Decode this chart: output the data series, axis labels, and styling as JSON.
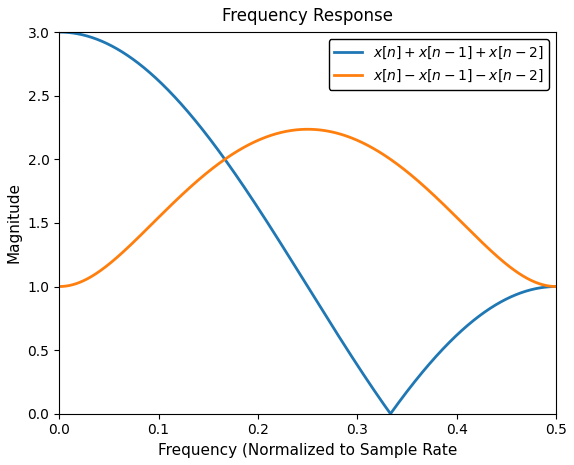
{
  "title": "Frequency Response",
  "xlabel": "Frequency (Normalized to Sample Rate",
  "ylabel": "Magnitude",
  "line1_color": "#1f77b4",
  "line2_color": "#ff7f0e",
  "line1_label": "$x[n] + x[n-1] + x[n-2]$",
  "line2_label": "$x[n] - x[n-1] - x[n-2]$",
  "xlim": [
    0.0,
    0.5
  ],
  "ylim": [
    0.0,
    3.0
  ],
  "xticks": [
    0.0,
    0.1,
    0.2,
    0.3,
    0.4,
    0.5
  ],
  "yticks": [
    0.0,
    0.5,
    1.0,
    1.5,
    2.0,
    2.5,
    3.0
  ],
  "background_color": "#ffffff",
  "n_points": 1000,
  "figwidth": 5.74,
  "figheight": 4.65,
  "dpi": 100
}
